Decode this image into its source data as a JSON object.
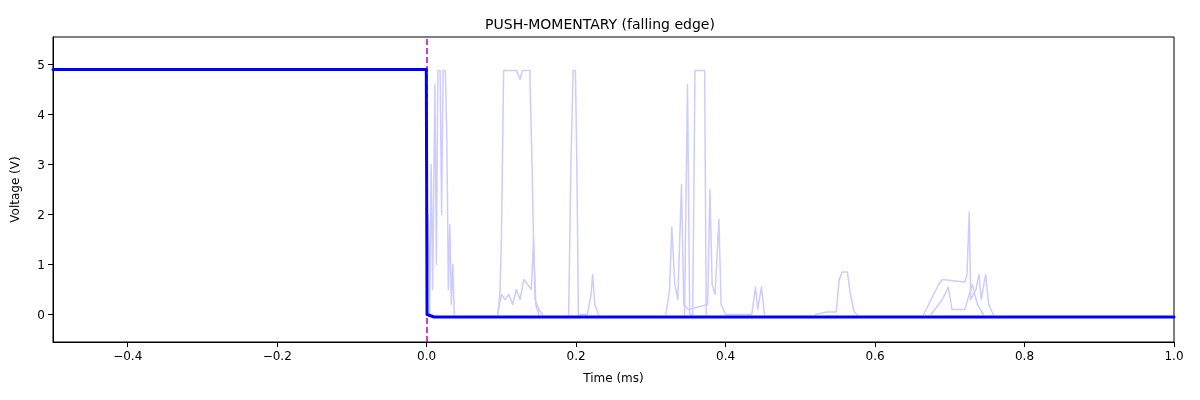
{
  "chart_data": {
    "type": "line",
    "title": "PUSH-MOMENTARY (falling edge)",
    "xlabel": "Time (ms)",
    "ylabel": "Voltage (V)",
    "xlim": [
      -0.5,
      1.0
    ],
    "xticks": [
      {
        "value": -0.4,
        "label": "−0.4"
      },
      {
        "value": -0.2,
        "label": "−0.2"
      },
      {
        "value": 0,
        "label": "0.0"
      },
      0.2,
      0.4,
      0.6,
      0.8,
      {
        "value": 1.0,
        "label": "1.0"
      }
    ],
    "ylim": [
      -0.55,
      5.55
    ],
    "yticks": [
      0,
      1,
      2,
      3,
      4,
      5
    ],
    "grid": false,
    "marker": "none",
    "line_style": "solid",
    "ref_lines": [
      {
        "axis": "x",
        "value": 0,
        "color": "#bf00bf",
        "line_style": "dashed"
      }
    ],
    "series": [
      {
        "color": "#ccccff",
        "x": [
          0,
          0.002,
          0.004,
          0.006,
          0.008,
          0.011,
          0.013,
          0.015,
          0.018,
          0.02,
          0.022,
          0.025,
          0.027,
          0.029,
          0.031,
          0.033,
          0.035,
          0.037
        ],
        "values": [
          0,
          2.0,
          0,
          3.0,
          0.5,
          4.6,
          1,
          4.88,
          4.88,
          2,
          4.88,
          4.88,
          3.5,
          0.5,
          1.8,
          0.2,
          1.0,
          0
        ]
      },
      {
        "color": "#ccccff",
        "x": [
          0.095,
          0.098,
          0.1,
          0.103,
          0.12,
          0.125,
          0.128,
          0.138,
          0.141,
          0.143,
          0.146,
          0.15
        ],
        "values": [
          0,
          0.4,
          1.5,
          4.88,
          4.88,
          4.7,
          4.88,
          4.88,
          3.0,
          1.5,
          0.2,
          0
        ]
      },
      {
        "color": "#ccccff",
        "x": [
          0.095,
          0.1,
          0.105,
          0.11,
          0.115,
          0.12,
          0.125,
          0.13,
          0.135,
          0.14,
          0.143,
          0.145,
          0.15,
          0.155
        ],
        "values": [
          0,
          0.4,
          0.3,
          0.4,
          0.2,
          0.5,
          0.3,
          0.7,
          0.6,
          0.5,
          1.5,
          0.3,
          0.1,
          0
        ]
      },
      {
        "color": "#ccccff",
        "x": [
          0.19,
          0.193,
          0.196,
          0.199,
          0.201,
          0.203,
          0.215,
          0.22,
          0.222,
          0.225,
          0.23
        ],
        "values": [
          0,
          3,
          4.88,
          4.88,
          3,
          0,
          0,
          0.4,
          0.8,
          0.2,
          0
        ]
      },
      {
        "color": "#ccccff",
        "x": [
          0.345,
          0.349,
          0.352,
          0.356,
          0.359,
          0.368,
          0.372,
          0.374
        ],
        "values": [
          0,
          4.6,
          0,
          0,
          4.88,
          4.88,
          4.88,
          0
        ]
      },
      {
        "color": "#ccccff",
        "x": [
          0.32,
          0.325,
          0.328,
          0.332,
          0.336,
          0.341,
          0.344,
          0.35,
          0.376,
          0.379,
          0.382,
          0.386,
          0.391,
          0.394,
          0.4,
          0.435,
          0.44,
          0.443,
          0.448,
          0.452
        ],
        "values": [
          0,
          0.5,
          1.75,
          0.6,
          0.3,
          2.6,
          0.2,
          0.1,
          0.2,
          2.5,
          0.6,
          0.4,
          1.9,
          0.2,
          0,
          0,
          0.55,
          0.1,
          0.55,
          0
        ]
      },
      {
        "color": "#ccccff",
        "x": [
          0.52,
          0.535,
          0.548,
          0.552,
          0.556,
          0.563,
          0.567,
          0.572,
          0.576
        ],
        "values": [
          0,
          0.05,
          0.05,
          0.7,
          0.85,
          0.85,
          0.4,
          0.05,
          0
        ]
      },
      {
        "color": "#ccccff",
        "x": [
          0.665,
          0.675,
          0.685,
          0.69,
          0.72,
          0.723,
          0.726,
          0.728,
          0.735,
          0.739,
          0.742,
          0.748,
          0.752,
          0.758
        ],
        "values": [
          0,
          0.3,
          0.6,
          0.7,
          0.65,
          0.8,
          2.05,
          0.3,
          0.5,
          0.8,
          0.3,
          0.8,
          0.2,
          0
        ]
      },
      {
        "color": "#ccccff",
        "x": [
          0.675,
          0.69,
          0.698,
          0.703,
          0.72,
          0.73,
          0.737,
          0.745
        ],
        "values": [
          0,
          0.3,
          0.55,
          0.1,
          0.1,
          0.6,
          0.2,
          0
        ]
      },
      {
        "color": "#0000ff",
        "x": [
          -0.5,
          -0.0005,
          0.0005,
          0.01,
          1.0
        ],
        "values": [
          4.9,
          4.9,
          0,
          -0.05,
          -0.05
        ]
      }
    ]
  }
}
